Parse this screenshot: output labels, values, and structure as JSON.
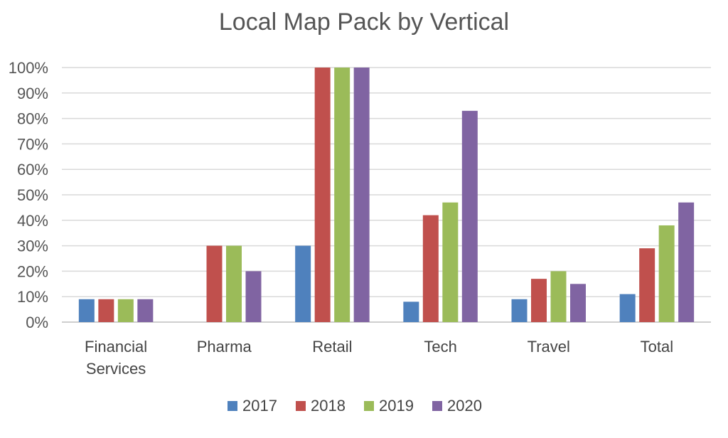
{
  "chart_data": {
    "type": "bar",
    "title": "Local Map Pack by Vertical",
    "categories": [
      [
        "Financial",
        "Services"
      ],
      [
        "Pharma"
      ],
      [
        "Retail"
      ],
      [
        "Tech"
      ],
      [
        "Travel"
      ],
      [
        "Total"
      ]
    ],
    "series": [
      {
        "name": "2017",
        "color": "#4f81bd",
        "values": [
          9,
          0,
          30,
          8,
          9,
          11
        ]
      },
      {
        "name": "2018",
        "color": "#c0504d",
        "values": [
          9,
          30,
          100,
          42,
          17,
          29
        ]
      },
      {
        "name": "2019",
        "color": "#9bbb59",
        "values": [
          9,
          30,
          100,
          47,
          20,
          38
        ]
      },
      {
        "name": "2020",
        "color": "#8064a2",
        "values": [
          9,
          20,
          100,
          83,
          15,
          47
        ]
      }
    ],
    "ylim": [
      0,
      100
    ],
    "yticks": [
      0,
      10,
      20,
      30,
      40,
      50,
      60,
      70,
      80,
      90,
      100
    ],
    "ytick_labels": [
      "0%",
      "10%",
      "20%",
      "30%",
      "40%",
      "50%",
      "60%",
      "70%",
      "80%",
      "90%",
      "100%"
    ],
    "xlabel": "",
    "ylabel": "",
    "grid": true,
    "legend": "bottom"
  },
  "colors": {
    "grid": "#d9d9d9",
    "axis": "#bfbfbf"
  }
}
